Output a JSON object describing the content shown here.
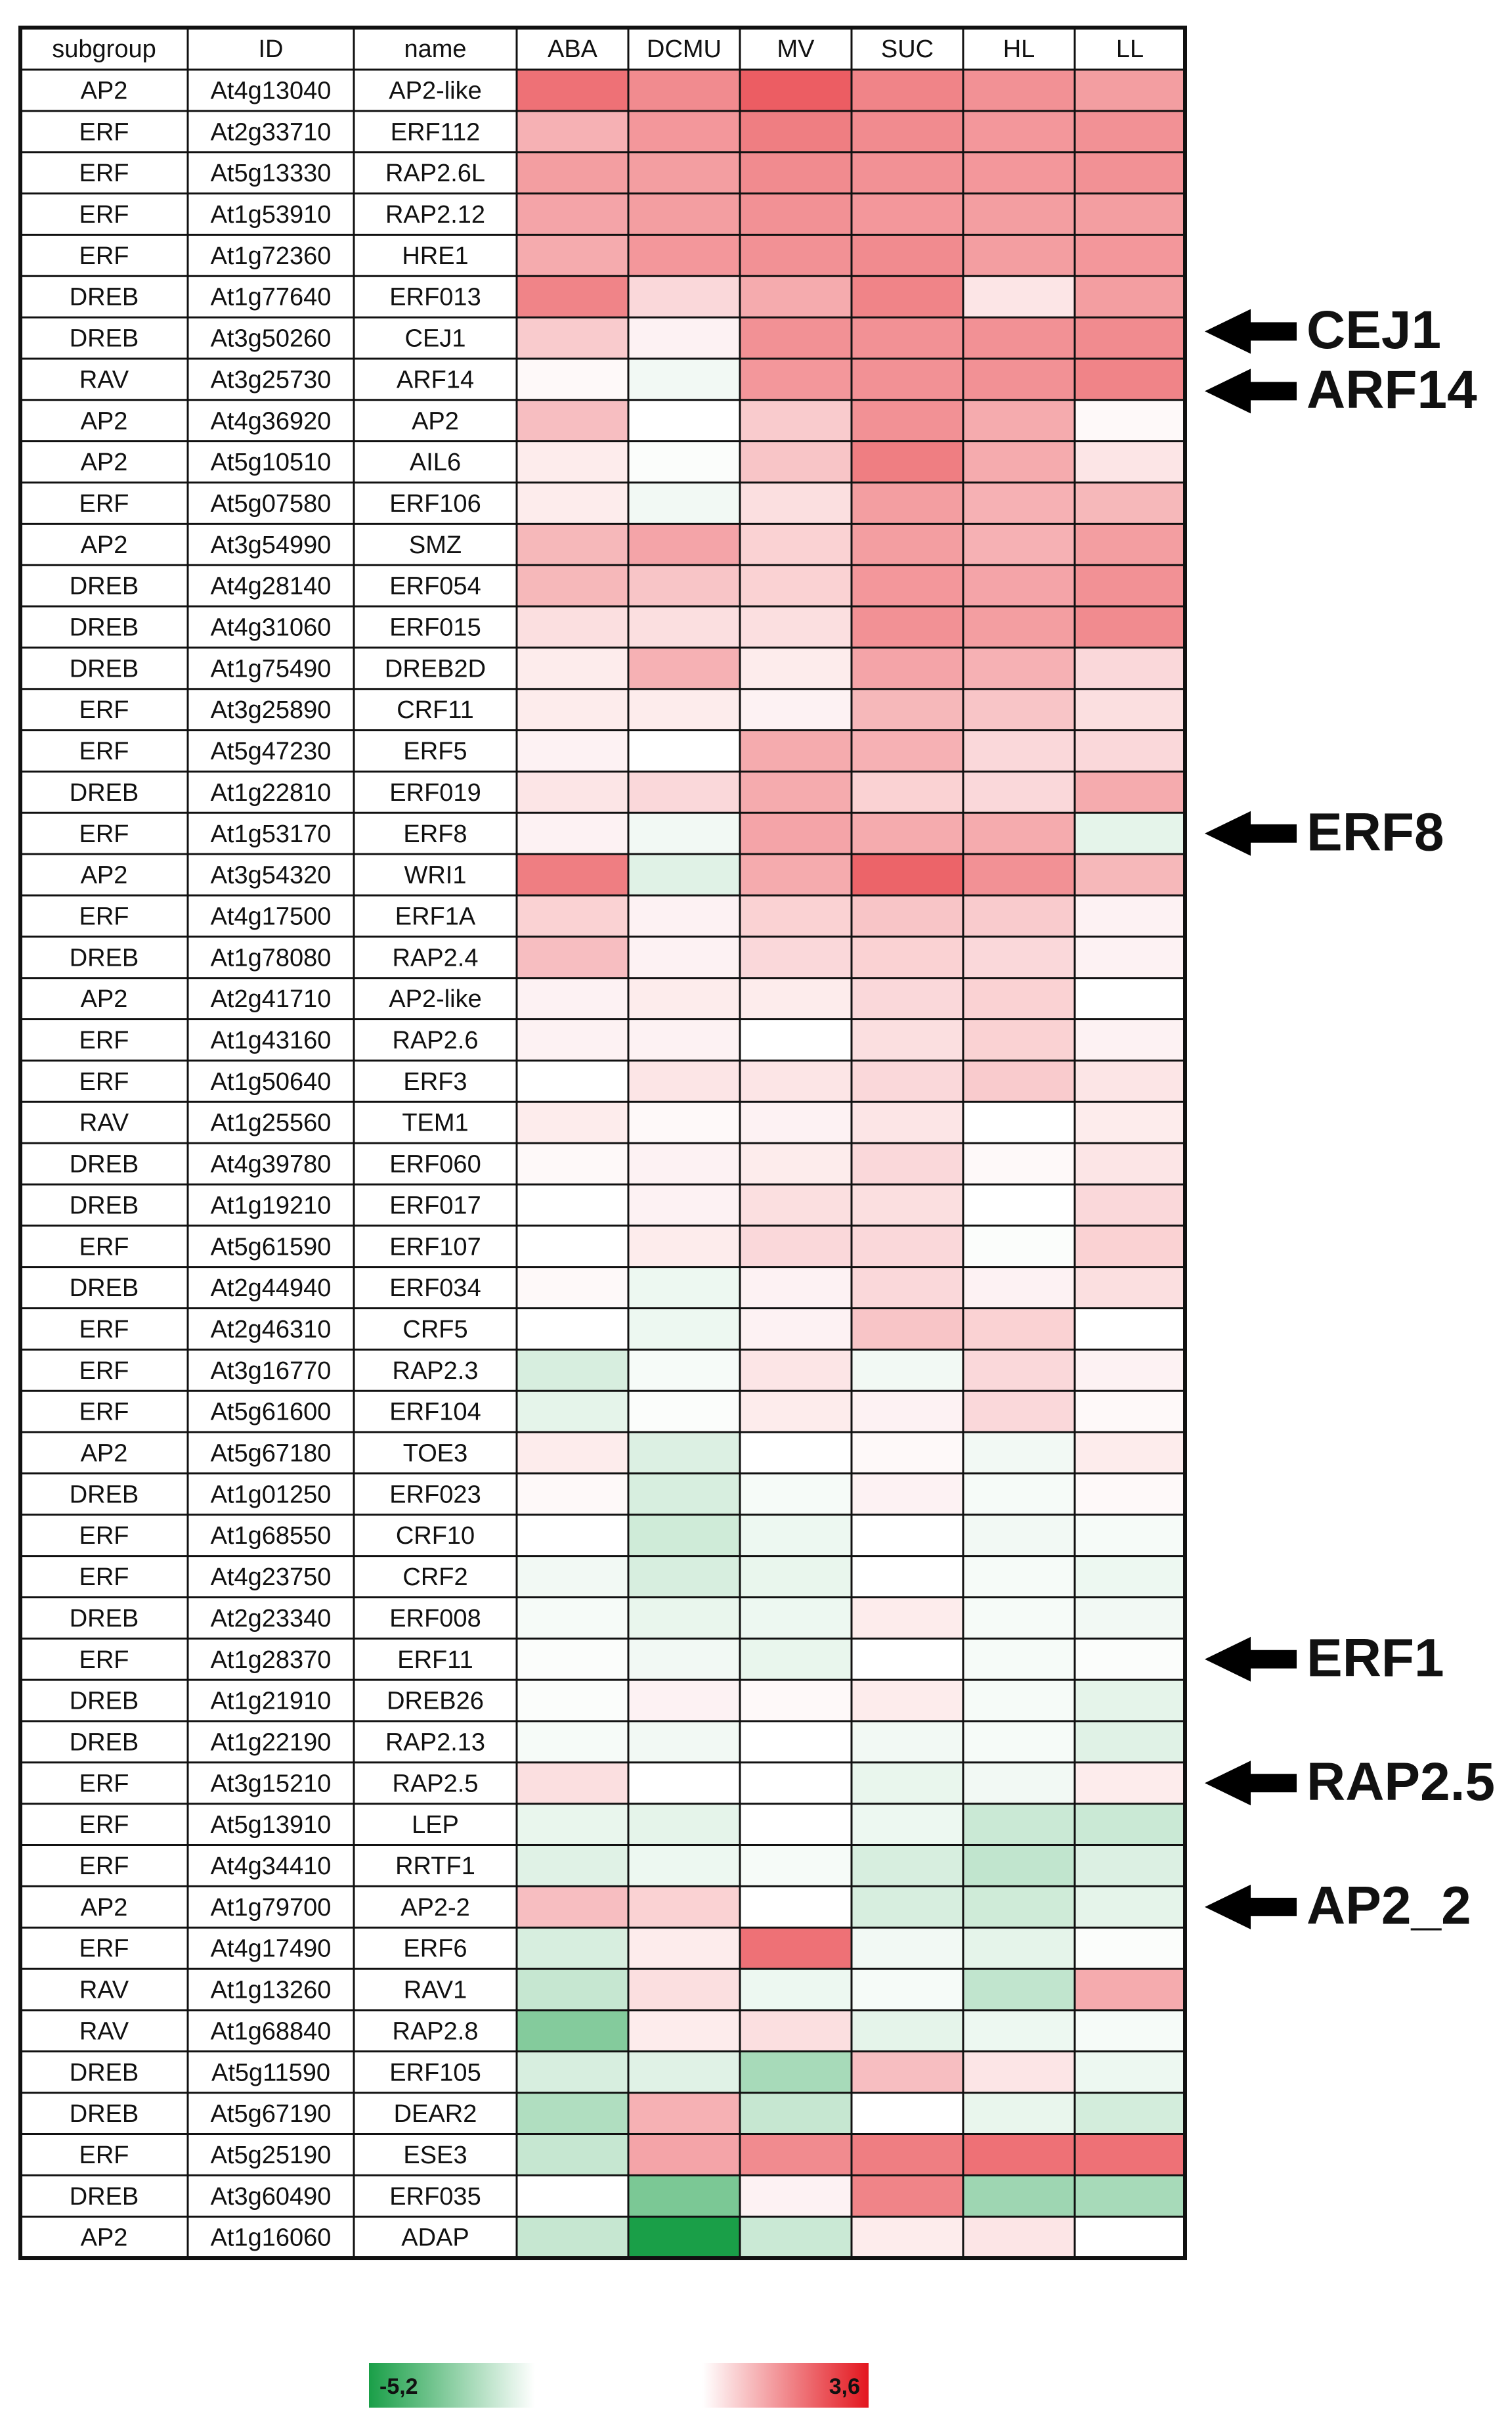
{
  "chart_data": {
    "type": "heatmap",
    "row_header": [
      "subgroup",
      "ID",
      "name"
    ],
    "columns": [
      "ABA",
      "DCMU",
      "MV",
      "SUC",
      "HL",
      "LL"
    ],
    "rows": [
      [
        "AP2",
        "At4g13040",
        "AP2-like"
      ],
      [
        "ERF",
        "At2g33710",
        "ERF112"
      ],
      [
        "ERF",
        "At5g13330",
        "RAP2.6L"
      ],
      [
        "ERF",
        "At1g53910",
        "RAP2.12"
      ],
      [
        "ERF",
        "At1g72360",
        "HRE1"
      ],
      [
        "DREB",
        "At1g77640",
        "ERF013"
      ],
      [
        "DREB",
        "At3g50260",
        "CEJ1"
      ],
      [
        "RAV",
        "At3g25730",
        "ARF14"
      ],
      [
        "AP2",
        "At4g36920",
        "AP2"
      ],
      [
        "AP2",
        "At5g10510",
        "AIL6"
      ],
      [
        "ERF",
        "At5g07580",
        "ERF106"
      ],
      [
        "AP2",
        "At3g54990",
        "SMZ"
      ],
      [
        "DREB",
        "At4g28140",
        "ERF054"
      ],
      [
        "DREB",
        "At4g31060",
        "ERF015"
      ],
      [
        "DREB",
        "At1g75490",
        "DREB2D"
      ],
      [
        "ERF",
        "At3g25890",
        "CRF11"
      ],
      [
        "ERF",
        "At5g47230",
        "ERF5"
      ],
      [
        "DREB",
        "At1g22810",
        "ERF019"
      ],
      [
        "ERF",
        "At1g53170",
        "ERF8"
      ],
      [
        "AP2",
        "At3g54320",
        "WRI1"
      ],
      [
        "ERF",
        "At4g17500",
        "ERF1A"
      ],
      [
        "DREB",
        "At1g78080",
        "RAP2.4"
      ],
      [
        "AP2",
        "At2g41710",
        "AP2-like"
      ],
      [
        "ERF",
        "At1g43160",
        "RAP2.6"
      ],
      [
        "ERF",
        "At1g50640",
        "ERF3"
      ],
      [
        "RAV",
        "At1g25560",
        "TEM1"
      ],
      [
        "DREB",
        "At4g39780",
        "ERF060"
      ],
      [
        "DREB",
        "At1g19210",
        "ERF017"
      ],
      [
        "ERF",
        "At5g61590",
        "ERF107"
      ],
      [
        "DREB",
        "At2g44940",
        "ERF034"
      ],
      [
        "ERF",
        "At2g46310",
        "CRF5"
      ],
      [
        "ERF",
        "At3g16770",
        "RAP2.3"
      ],
      [
        "ERF",
        "At5g61600",
        "ERF104"
      ],
      [
        "AP2",
        "At5g67180",
        "TOE3"
      ],
      [
        "DREB",
        "At1g01250",
        "ERF023"
      ],
      [
        "ERF",
        "At1g68550",
        "CRF10"
      ],
      [
        "ERF",
        "At4g23750",
        "CRF2"
      ],
      [
        "DREB",
        "At2g23340",
        "ERF008"
      ],
      [
        "ERF",
        "At1g28370",
        "ERF11"
      ],
      [
        "DREB",
        "At1g21910",
        "DREB26"
      ],
      [
        "DREB",
        "At1g22190",
        "RAP2.13"
      ],
      [
        "ERF",
        "At3g15210",
        "RAP2.5"
      ],
      [
        "ERF",
        "At5g13910",
        "LEP"
      ],
      [
        "ERF",
        "At4g34410",
        "RRTF1"
      ],
      [
        "AP2",
        "At1g79700",
        "AP2-2"
      ],
      [
        "ERF",
        "At4g17490",
        "ERF6"
      ],
      [
        "RAV",
        "At1g13260",
        "RAV1"
      ],
      [
        "RAV",
        "At1g68840",
        "RAP2.8"
      ],
      [
        "DREB",
        "At5g11590",
        "ERF105"
      ],
      [
        "DREB",
        "At5g67190",
        "DEAR2"
      ],
      [
        "ERF",
        "At5g25190",
        "ESE3"
      ],
      [
        "DREB",
        "At3g60490",
        "ERF035"
      ],
      [
        "AP2",
        "At1g16060",
        "ADAP"
      ]
    ],
    "values": [
      [
        2.2,
        1.8,
        2.5,
        1.9,
        1.7,
        1.5
      ],
      [
        1.2,
        1.6,
        2.0,
        1.8,
        1.6,
        1.7
      ],
      [
        1.5,
        1.5,
        1.8,
        1.7,
        1.6,
        1.7
      ],
      [
        1.4,
        1.5,
        1.7,
        1.6,
        1.5,
        1.5
      ],
      [
        1.3,
        1.6,
        1.7,
        1.8,
        1.5,
        1.6
      ],
      [
        1.9,
        0.6,
        1.3,
        1.9,
        0.4,
        1.5
      ],
      [
        0.8,
        0.2,
        1.7,
        1.7,
        1.7,
        1.8
      ],
      [
        0.1,
        -0.3,
        1.6,
        1.7,
        1.7,
        1.9
      ],
      [
        1.0,
        0,
        0.8,
        1.7,
        1.3,
        0.1
      ],
      [
        0.3,
        -0.1,
        0.9,
        2.0,
        1.3,
        0.4
      ],
      [
        0.3,
        -0.3,
        0.5,
        1.5,
        1.2,
        1.1
      ],
      [
        1.1,
        1.4,
        0.7,
        1.5,
        1.2,
        1.5
      ],
      [
        1.1,
        0.9,
        0.7,
        1.6,
        1.4,
        1.7
      ],
      [
        0.5,
        0.5,
        0.5,
        1.7,
        1.5,
        1.8
      ],
      [
        0.3,
        1.2,
        0.3,
        1.4,
        1.2,
        0.6
      ],
      [
        0.3,
        0.3,
        0.2,
        1.1,
        0.9,
        0.5
      ],
      [
        0.2,
        0,
        1.3,
        1.2,
        0.6,
        0.6
      ],
      [
        0.4,
        0.6,
        1.3,
        0.7,
        0.6,
        1.3
      ],
      [
        0.2,
        -0.3,
        1.4,
        1.3,
        1.3,
        -0.6
      ],
      [
        2.0,
        -0.7,
        1.3,
        2.4,
        1.7,
        1.1
      ],
      [
        0.7,
        0.2,
        0.7,
        0.9,
        0.8,
        0.2
      ],
      [
        1.0,
        0.2,
        0.6,
        0.7,
        0.6,
        0.2
      ],
      [
        0.2,
        0.3,
        0.3,
        0.6,
        0.7,
        0
      ],
      [
        0.2,
        0.2,
        0,
        0.5,
        0.7,
        0.2
      ],
      [
        0,
        0.4,
        0.4,
        0.6,
        0.8,
        0.4
      ],
      [
        0.3,
        0.1,
        0.2,
        0.4,
        0,
        0.3
      ],
      [
        0.1,
        0.2,
        0.3,
        0.6,
        0.1,
        0.4
      ],
      [
        0,
        0.2,
        0.5,
        0.5,
        0,
        0.6
      ],
      [
        0,
        0.3,
        0.6,
        0.6,
        -0.1,
        0.7
      ],
      [
        0.1,
        -0.4,
        0.2,
        0.6,
        0.2,
        0.5
      ],
      [
        0,
        -0.4,
        0.2,
        0.9,
        0.7,
        0
      ],
      [
        -0.9,
        -0.2,
        0.4,
        -0.3,
        0.6,
        0.2
      ],
      [
        -0.6,
        -0.1,
        0.3,
        0.2,
        0.6,
        0.1
      ],
      [
        0.3,
        -0.8,
        0,
        0.1,
        -0.3,
        0.3
      ],
      [
        0.1,
        -0.9,
        -0.2,
        0.2,
        -0.2,
        0.1
      ],
      [
        0,
        -1.1,
        -0.4,
        0,
        -0.3,
        -0.2
      ],
      [
        -0.3,
        -0.9,
        -0.5,
        0,
        -0.2,
        -0.4
      ],
      [
        -0.2,
        -0.5,
        -0.4,
        0.3,
        -0.2,
        -0.3
      ],
      [
        -0.1,
        -0.3,
        -0.5,
        0,
        -0.2,
        -0.1
      ],
      [
        -0.1,
        0.2,
        0.1,
        0.3,
        -0.2,
        -0.6
      ],
      [
        -0.2,
        -0.3,
        0,
        -0.3,
        -0.2,
        -0.7
      ],
      [
        0.5,
        0,
        0,
        -0.5,
        -0.3,
        0.3
      ],
      [
        -0.5,
        -0.6,
        0,
        -0.4,
        -1.2,
        -1.2
      ],
      [
        -0.7,
        -0.4,
        -0.2,
        -0.9,
        -1.4,
        -0.8
      ],
      [
        1.0,
        0.7,
        0,
        -0.9,
        -1.1,
        -0.6
      ],
      [
        -0.9,
        0.3,
        2.2,
        -0.3,
        -0.6,
        -0.1
      ],
      [
        -1.3,
        0.5,
        -0.4,
        -0.2,
        -1.4,
        1.3
      ],
      [
        -2.8,
        0.3,
        0.5,
        -0.6,
        -0.4,
        -0.2
      ],
      [
        -0.9,
        -0.7,
        -2.0,
        1.0,
        0.4,
        -0.4
      ],
      [
        -1.8,
        1.2,
        -1.3,
        0,
        -0.5,
        -1.0
      ],
      [
        -1.3,
        1.4,
        1.8,
        2.0,
        2.2,
        2.2
      ],
      [
        0,
        -3.0,
        0.2,
        1.9,
        -2.2,
        -2.0
      ],
      [
        -1.3,
        -5.2,
        -1.2,
        0.3,
        0.4,
        0
      ]
    ],
    "colorscale": {
      "min": {
        "value": -5.2,
        "label": "-5,2"
      },
      "max": {
        "value": 3.6,
        "label": "3,6"
      },
      "low_color": "#1a9f48",
      "mid_color": "#ffffff",
      "high_color": "#e3161e"
    },
    "annotations": [
      "CEJ1",
      "ARF14",
      "ERF8",
      "ERF1",
      "RAP2.5",
      "AP2_2"
    ]
  }
}
